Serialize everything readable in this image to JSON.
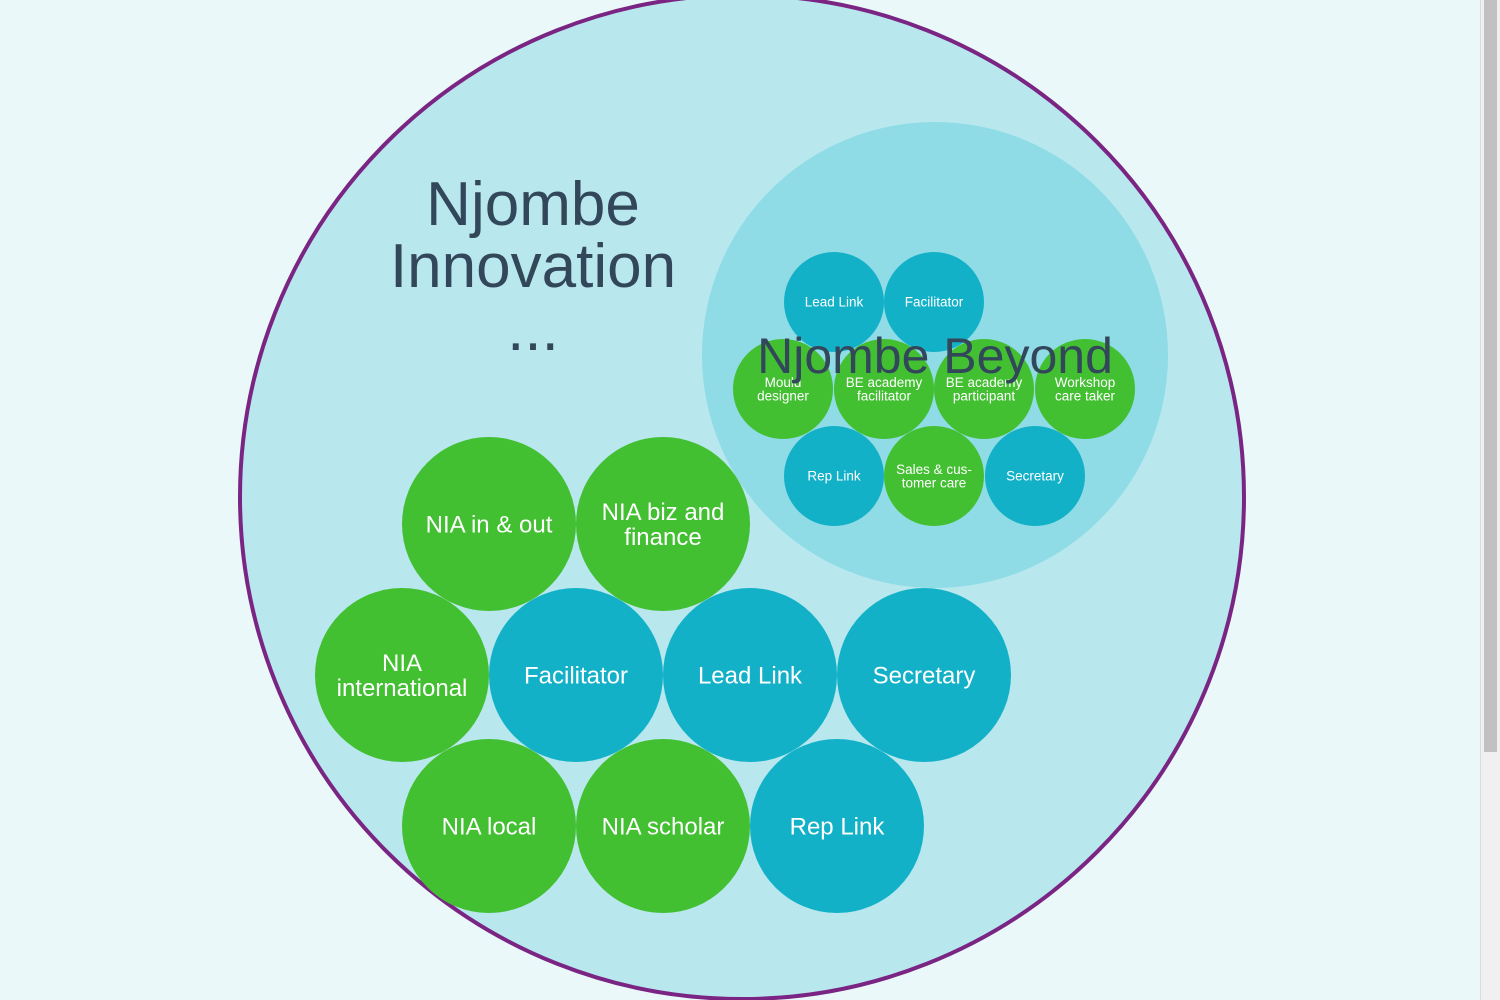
{
  "colors": {
    "page_background": "#eaf8f9",
    "outer_circle_fill": "#b8e8ee",
    "outer_circle_stroke": "#7a2583",
    "sub_circle_fill": "#8fdce6",
    "role_blue": "#13b1c8",
    "role_green": "#43bf32",
    "title_text": "#33475b",
    "role_text": "#ffffff"
  },
  "outer_circle": {
    "title_lines": [
      "Njombe",
      "Innovation",
      "..."
    ]
  },
  "sub_circle": {
    "title": "Njombe Beyond",
    "roles": [
      {
        "lines": [
          "Lead Link"
        ],
        "color": "blue"
      },
      {
        "lines": [
          "Facilitator"
        ],
        "color": "blue"
      },
      {
        "lines": [
          "Mould",
          "designer"
        ],
        "color": "green"
      },
      {
        "lines": [
          "BE academy",
          "facilitator"
        ],
        "color": "green"
      },
      {
        "lines": [
          "BE academy",
          "participant"
        ],
        "color": "green"
      },
      {
        "lines": [
          "Workshop",
          "care taker"
        ],
        "color": "green"
      },
      {
        "lines": [
          "Rep Link"
        ],
        "color": "blue"
      },
      {
        "lines": [
          "Sales & cus-",
          "tomer care"
        ],
        "color": "green"
      },
      {
        "lines": [
          "Secretary"
        ],
        "color": "blue"
      }
    ]
  },
  "main_roles": [
    {
      "lines": [
        "NIA in & out"
      ],
      "color": "green"
    },
    {
      "lines": [
        "NIA biz and",
        "finance"
      ],
      "color": "green"
    },
    {
      "lines": [
        "NIA",
        "international"
      ],
      "color": "green"
    },
    {
      "lines": [
        "Facilitator"
      ],
      "color": "blue"
    },
    {
      "lines": [
        "Lead Link"
      ],
      "color": "blue"
    },
    {
      "lines": [
        "Secretary"
      ],
      "color": "blue"
    },
    {
      "lines": [
        "NIA local"
      ],
      "color": "green"
    },
    {
      "lines": [
        "NIA scholar"
      ],
      "color": "green"
    },
    {
      "lines": [
        "Rep Link"
      ],
      "color": "blue"
    }
  ]
}
